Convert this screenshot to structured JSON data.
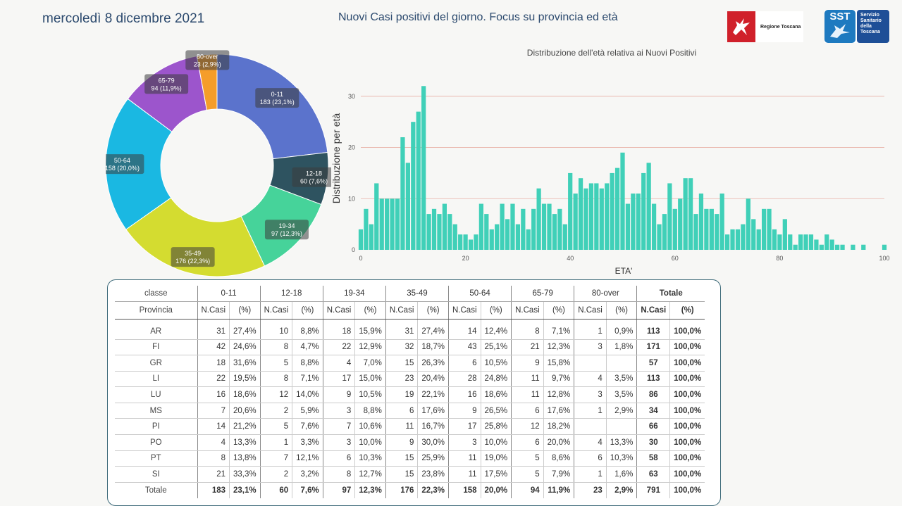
{
  "header": {
    "date": "mercoledì 8 dicembre 2021",
    "title": "Nuovi Casi positivi del giorno. Focus su provincia ed età",
    "logo_rt": "Regione Toscana",
    "logo_sst": "SST",
    "logo_sst_sub": [
      "Servizio",
      "Sanitario",
      "della",
      "Toscana"
    ]
  },
  "colors": {
    "bars": "#40d0b8",
    "slices": [
      "#5b73cc",
      "#2e5360",
      "#46d39a",
      "#d4dc30",
      "#1ab8e2",
      "#9c55cc",
      "#f59d2a"
    ]
  },
  "chart_data": [
    {
      "type": "pie",
      "donut": true,
      "categories": [
        "0-11",
        "12-18",
        "19-34",
        "35-49",
        "50-64",
        "65-79",
        "80-over"
      ],
      "values": [
        183,
        60,
        97,
        176,
        158,
        94,
        23
      ],
      "labels": [
        "183 (23,1%)",
        "60 (7,6%)",
        "97 (12,3%)",
        "176 (22,3%)",
        "158 (20,0%)",
        "94 (11,9%)",
        "23 (2,9%)"
      ]
    },
    {
      "type": "bar",
      "title": "Distribuzione dell'età relativa ai Nuovi Positivi",
      "xlabel": "ETA'",
      "ylabel": "Distribuzione per età",
      "xlim": [
        0,
        100
      ],
      "ylim": [
        0,
        33
      ],
      "xticks": [
        0,
        20,
        40,
        60,
        80,
        100
      ],
      "yticks": [
        0,
        10,
        20,
        30
      ],
      "x": [
        0,
        1,
        2,
        3,
        4,
        5,
        6,
        7,
        8,
        9,
        10,
        11,
        12,
        13,
        14,
        15,
        16,
        17,
        18,
        19,
        20,
        21,
        22,
        23,
        24,
        25,
        26,
        27,
        28,
        29,
        30,
        31,
        32,
        33,
        34,
        35,
        36,
        37,
        38,
        39,
        40,
        41,
        42,
        43,
        44,
        45,
        46,
        47,
        48,
        49,
        50,
        51,
        52,
        53,
        54,
        55,
        56,
        57,
        58,
        59,
        60,
        61,
        62,
        63,
        64,
        65,
        66,
        67,
        68,
        69,
        70,
        71,
        72,
        73,
        74,
        75,
        76,
        77,
        78,
        79,
        80,
        81,
        82,
        83,
        84,
        85,
        86,
        87,
        88,
        89,
        90,
        91,
        92,
        93,
        94,
        95,
        96,
        97,
        98,
        99,
        100
      ],
      "values": [
        4,
        8,
        5,
        13,
        10,
        10,
        10,
        10,
        22,
        17,
        25,
        27,
        32,
        7,
        8,
        7,
        9,
        7,
        5,
        3,
        3,
        2,
        3,
        9,
        7,
        4,
        5,
        9,
        6,
        9,
        5,
        8,
        4,
        8,
        12,
        9,
        9,
        7,
        8,
        5,
        15,
        11,
        14,
        12,
        13,
        13,
        12,
        13,
        15,
        16,
        19,
        9,
        11,
        11,
        15,
        17,
        9,
        5,
        7,
        13,
        8,
        10,
        14,
        14,
        7,
        11,
        8,
        8,
        7,
        11,
        3,
        4,
        4,
        5,
        10,
        6,
        4,
        8,
        8,
        4,
        3,
        6,
        3,
        1,
        3,
        3,
        3,
        2,
        1,
        3,
        2,
        1,
        1,
        0,
        1,
        0,
        1,
        0,
        0,
        0,
        1
      ]
    }
  ],
  "table": {
    "col_classe": "classe",
    "col_provincia": "Provincia",
    "groups": [
      "0-11",
      "12-18",
      "19-34",
      "35-49",
      "50-64",
      "65-79",
      "80-over"
    ],
    "total_group": "Totale",
    "sub_n": "N.Casi",
    "sub_p": "(%)",
    "rows": [
      {
        "prov": "AR",
        "cells": [
          [
            "31",
            "27,4%"
          ],
          [
            "10",
            "8,8%"
          ],
          [
            "18",
            "15,9%"
          ],
          [
            "31",
            "27,4%"
          ],
          [
            "14",
            "12,4%"
          ],
          [
            "8",
            "7,1%"
          ],
          [
            "1",
            "0,9%"
          ]
        ],
        "tot": [
          "113",
          "100,0%"
        ]
      },
      {
        "prov": "FI",
        "cells": [
          [
            "42",
            "24,6%"
          ],
          [
            "8",
            "4,7%"
          ],
          [
            "22",
            "12,9%"
          ],
          [
            "32",
            "18,7%"
          ],
          [
            "43",
            "25,1%"
          ],
          [
            "21",
            "12,3%"
          ],
          [
            "3",
            "1,8%"
          ]
        ],
        "tot": [
          "171",
          "100,0%"
        ]
      },
      {
        "prov": "GR",
        "cells": [
          [
            "18",
            "31,6%"
          ],
          [
            "5",
            "8,8%"
          ],
          [
            "4",
            "7,0%"
          ],
          [
            "15",
            "26,3%"
          ],
          [
            "6",
            "10,5%"
          ],
          [
            "9",
            "15,8%"
          ],
          [
            "",
            ""
          ]
        ],
        "tot": [
          "57",
          "100,0%"
        ]
      },
      {
        "prov": "LI",
        "cells": [
          [
            "22",
            "19,5%"
          ],
          [
            "8",
            "7,1%"
          ],
          [
            "17",
            "15,0%"
          ],
          [
            "23",
            "20,4%"
          ],
          [
            "28",
            "24,8%"
          ],
          [
            "11",
            "9,7%"
          ],
          [
            "4",
            "3,5%"
          ]
        ],
        "tot": [
          "113",
          "100,0%"
        ]
      },
      {
        "prov": "LU",
        "cells": [
          [
            "16",
            "18,6%"
          ],
          [
            "12",
            "14,0%"
          ],
          [
            "9",
            "10,5%"
          ],
          [
            "19",
            "22,1%"
          ],
          [
            "16",
            "18,6%"
          ],
          [
            "11",
            "12,8%"
          ],
          [
            "3",
            "3,5%"
          ]
        ],
        "tot": [
          "86",
          "100,0%"
        ]
      },
      {
        "prov": "MS",
        "cells": [
          [
            "7",
            "20,6%"
          ],
          [
            "2",
            "5,9%"
          ],
          [
            "3",
            "8,8%"
          ],
          [
            "6",
            "17,6%"
          ],
          [
            "9",
            "26,5%"
          ],
          [
            "6",
            "17,6%"
          ],
          [
            "1",
            "2,9%"
          ]
        ],
        "tot": [
          "34",
          "100,0%"
        ]
      },
      {
        "prov": "PI",
        "cells": [
          [
            "14",
            "21,2%"
          ],
          [
            "5",
            "7,6%"
          ],
          [
            "7",
            "10,6%"
          ],
          [
            "11",
            "16,7%"
          ],
          [
            "17",
            "25,8%"
          ],
          [
            "12",
            "18,2%"
          ],
          [
            "",
            ""
          ]
        ],
        "tot": [
          "66",
          "100,0%"
        ]
      },
      {
        "prov": "PO",
        "cells": [
          [
            "4",
            "13,3%"
          ],
          [
            "1",
            "3,3%"
          ],
          [
            "3",
            "10,0%"
          ],
          [
            "9",
            "30,0%"
          ],
          [
            "3",
            "10,0%"
          ],
          [
            "6",
            "20,0%"
          ],
          [
            "4",
            "13,3%"
          ]
        ],
        "tot": [
          "30",
          "100,0%"
        ]
      },
      {
        "prov": "PT",
        "cells": [
          [
            "8",
            "13,8%"
          ],
          [
            "7",
            "12,1%"
          ],
          [
            "6",
            "10,3%"
          ],
          [
            "15",
            "25,9%"
          ],
          [
            "11",
            "19,0%"
          ],
          [
            "5",
            "8,6%"
          ],
          [
            "6",
            "10,3%"
          ]
        ],
        "tot": [
          "58",
          "100,0%"
        ]
      },
      {
        "prov": "SI",
        "cells": [
          [
            "21",
            "33,3%"
          ],
          [
            "2",
            "3,2%"
          ],
          [
            "8",
            "12,7%"
          ],
          [
            "15",
            "23,8%"
          ],
          [
            "11",
            "17,5%"
          ],
          [
            "5",
            "7,9%"
          ],
          [
            "1",
            "1,6%"
          ]
        ],
        "tot": [
          "63",
          "100,0%"
        ]
      }
    ],
    "total_row": {
      "prov": "Totale",
      "cells": [
        [
          "183",
          "23,1%"
        ],
        [
          "60",
          "7,6%"
        ],
        [
          "97",
          "12,3%"
        ],
        [
          "176",
          "22,3%"
        ],
        [
          "158",
          "20,0%"
        ],
        [
          "94",
          "11,9%"
        ],
        [
          "23",
          "2,9%"
        ]
      ],
      "tot": [
        "791",
        "100,0%"
      ]
    }
  }
}
